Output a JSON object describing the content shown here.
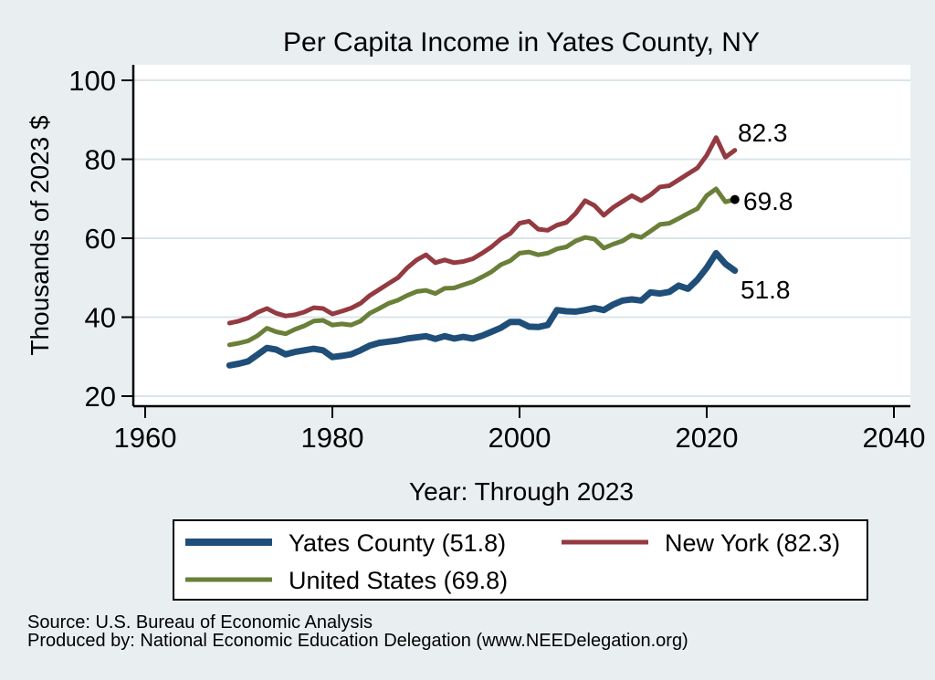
{
  "title": "Per Capita Income in Yates County, NY",
  "colors": {
    "background": "#e9eff1",
    "plot_background": "#ffffff",
    "gridline": "#dbe5e9",
    "title_text": "#1e3a5f",
    "yates_county": "#1f4e79",
    "new_york": "#943a41",
    "united_states": "#6a7f38"
  },
  "notes": {
    "source": "Source: U.S. Bureau of Economic Analysis",
    "produced_by": "Produced by: National Economic Education Delegation (www.NEEDelegation.org)"
  },
  "chart_data": {
    "type": "line",
    "title": "Per Capita Income in Yates County, NY",
    "xlabel": "Year: Through 2023",
    "ylabel": "Thousands of 2023 $",
    "x_tick_labels": [
      "1960",
      "1980",
      "2000",
      "2020",
      "2040"
    ],
    "y_tick_labels": [
      "20",
      "40",
      "60",
      "80",
      "100"
    ],
    "x_ticks": [
      1960,
      1980,
      2000,
      2020,
      2040
    ],
    "y_ticks": [
      20,
      40,
      60,
      80,
      100
    ],
    "xlim": [
      1958.7,
      2041.8
    ],
    "ylim": [
      17.5,
      104
    ],
    "grid": true,
    "legend_position": "bottom",
    "end_labels": {
      "new_york": "82.3",
      "united_states": "69.8",
      "yates_county": "51.8"
    },
    "years": [
      1969,
      1970,
      1971,
      1972,
      1973,
      1974,
      1975,
      1976,
      1977,
      1978,
      1979,
      1980,
      1981,
      1982,
      1983,
      1984,
      1985,
      1986,
      1987,
      1988,
      1989,
      1990,
      1991,
      1992,
      1993,
      1994,
      1995,
      1996,
      1997,
      1998,
      1999,
      2000,
      2001,
      2002,
      2003,
      2004,
      2005,
      2006,
      2007,
      2008,
      2009,
      2010,
      2011,
      2012,
      2013,
      2014,
      2015,
      2016,
      2017,
      2018,
      2019,
      2020,
      2021,
      2022,
      2023
    ],
    "series": [
      {
        "id": "new_york",
        "name": "New York",
        "label": "New York (82.3)",
        "final_value": 82.3,
        "color": "#943a41",
        "width": 5,
        "values": [
          38.5,
          39.0,
          39.8,
          41.2,
          42.2,
          41.0,
          40.3,
          40.6,
          41.3,
          42.4,
          42.2,
          40.8,
          41.5,
          42.3,
          43.5,
          45.5,
          47.0,
          48.5,
          50.0,
          52.5,
          54.5,
          55.8,
          53.8,
          54.5,
          53.8,
          54.1,
          54.8,
          56.2,
          57.8,
          59.8,
          61.2,
          63.8,
          64.3,
          62.3,
          62.0,
          63.3,
          64.0,
          66.3,
          69.5,
          68.3,
          65.8,
          67.8,
          69.3,
          70.8,
          69.5,
          71.0,
          73.0,
          73.3,
          74.8,
          76.3,
          77.8,
          81.0,
          85.5,
          80.5,
          82.3
        ]
      },
      {
        "id": "united_states",
        "name": "United States",
        "label": "United States (69.8)",
        "final_value": 69.8,
        "color": "#6a7f38",
        "width": 5,
        "values": [
          33.0,
          33.4,
          34.0,
          35.3,
          37.2,
          36.3,
          35.8,
          36.9,
          37.8,
          39.0,
          39.2,
          38.0,
          38.3,
          38.0,
          39.0,
          41.0,
          42.2,
          43.5,
          44.3,
          45.5,
          46.5,
          46.8,
          46.0,
          47.3,
          47.4,
          48.2,
          49.0,
          50.2,
          51.5,
          53.3,
          54.3,
          56.2,
          56.5,
          55.8,
          56.2,
          57.3,
          57.8,
          59.3,
          60.2,
          59.8,
          57.5,
          58.5,
          59.3,
          60.8,
          60.2,
          61.8,
          63.5,
          63.8,
          65.0,
          66.3,
          67.5,
          70.8,
          72.5,
          69.2,
          69.8
        ]
      },
      {
        "id": "yates_county",
        "name": "Yates County",
        "label": "Yates County (51.8)",
        "final_value": 51.8,
        "color": "#1f4e79",
        "width": 7,
        "values": [
          27.8,
          28.2,
          28.8,
          30.5,
          32.2,
          31.8,
          30.6,
          31.2,
          31.6,
          32.0,
          31.6,
          29.9,
          30.2,
          30.6,
          31.6,
          32.8,
          33.5,
          33.8,
          34.1,
          34.6,
          34.9,
          35.2,
          34.5,
          35.2,
          34.6,
          35.0,
          34.6,
          35.3,
          36.3,
          37.3,
          38.8,
          38.8,
          37.6,
          37.5,
          38.0,
          41.8,
          41.5,
          41.4,
          41.8,
          42.3,
          41.8,
          43.2,
          44.2,
          44.5,
          44.2,
          46.3,
          46.0,
          46.4,
          48.0,
          47.2,
          49.5,
          52.5,
          56.2,
          53.5,
          51.8
        ]
      }
    ]
  }
}
